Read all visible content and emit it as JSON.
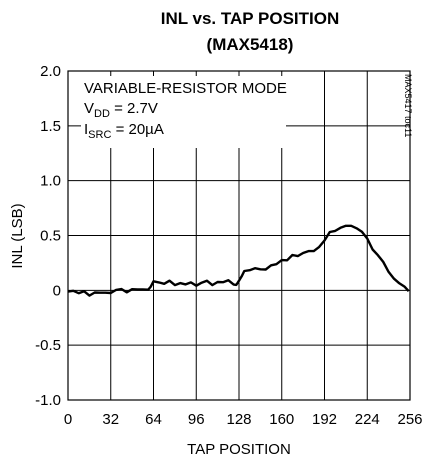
{
  "chart_data": {
    "type": "line",
    "title": "INL vs. TAP POSITION",
    "subtitle": "(MAX5418)",
    "xlabel": "TAP POSITION",
    "ylabel": "INL (LSB)",
    "xlim": [
      0,
      256
    ],
    "ylim": [
      -1.0,
      2.0
    ],
    "x_ticks": [
      0,
      32,
      64,
      96,
      128,
      160,
      192,
      224,
      256
    ],
    "y_ticks": [
      2.0,
      1.5,
      1.0,
      0.5,
      0,
      -0.5,
      -1.0
    ],
    "y_tick_labels": [
      "2.0",
      "1.5",
      "1.0",
      "0.5",
      "0",
      "-0.5",
      "-1.0"
    ],
    "grid": true,
    "annotation": {
      "line1": "VARIABLE-RESISTOR MODE",
      "line2_main": "V",
      "line2_sub": "DD",
      "line2_rest": " = 2.7V",
      "line3_main": "I",
      "line3_sub": "SRC",
      "line3_rest": " = 20µA"
    },
    "side_label": "MAX5417 toc11",
    "series": [
      {
        "x": [
          0,
          4,
          8,
          12,
          16,
          20,
          24,
          28,
          32,
          36,
          40,
          44,
          48,
          52,
          56,
          60,
          62,
          64,
          68,
          72,
          76,
          80,
          84,
          88,
          92,
          96,
          100,
          104,
          108,
          112,
          116,
          120,
          124,
          126,
          128,
          130,
          132,
          136,
          140,
          144,
          148,
          152,
          156,
          160,
          164,
          168,
          172,
          176,
          180,
          184,
          188,
          192,
          196,
          200,
          204,
          208,
          212,
          216,
          220,
          224,
          228,
          232,
          236,
          240,
          244,
          248,
          252,
          255
        ],
        "y": [
          0.0,
          0.0,
          -0.03,
          -0.02,
          -0.04,
          -0.02,
          -0.03,
          -0.01,
          -0.02,
          0.0,
          0.0,
          -0.01,
          0.01,
          0.0,
          0.02,
          0.01,
          0.03,
          0.07,
          0.08,
          0.06,
          0.08,
          0.06,
          0.07,
          0.05,
          0.06,
          0.05,
          0.07,
          0.08,
          0.06,
          0.08,
          0.07,
          0.08,
          0.06,
          0.05,
          0.08,
          0.14,
          0.18,
          0.18,
          0.19,
          0.2,
          0.19,
          0.22,
          0.25,
          0.28,
          0.27,
          0.31,
          0.32,
          0.34,
          0.35,
          0.37,
          0.4,
          0.45,
          0.52,
          0.55,
          0.57,
          0.58,
          0.6,
          0.57,
          0.53,
          0.46,
          0.38,
          0.32,
          0.25,
          0.18,
          0.11,
          0.06,
          0.02,
          0.0
        ]
      }
    ]
  }
}
